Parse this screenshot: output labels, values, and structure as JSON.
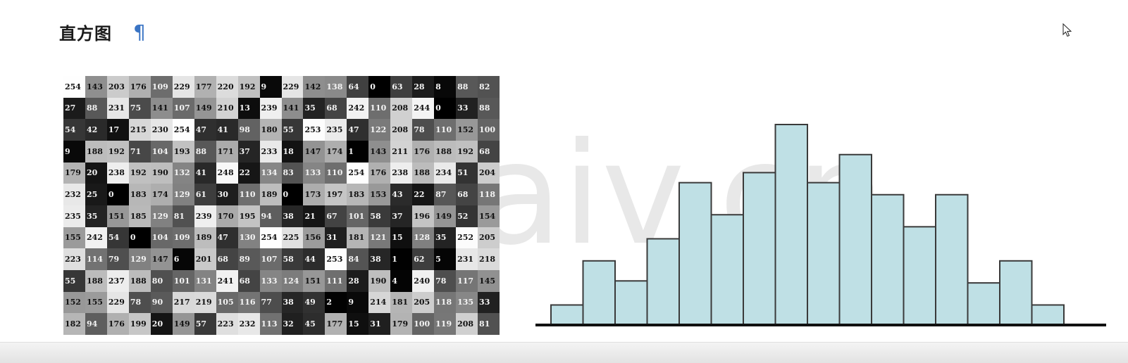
{
  "heading": {
    "title": "直方图",
    "para_mark": "¶"
  },
  "colors": {
    "para_mark": "#3a74c4",
    "bar_fill": "#bfe0e5",
    "bar_stroke": "#3a3a3a",
    "axis": "#111111",
    "watermark": "#e8e8e8"
  },
  "watermark": {
    "text": "eaaiv.cn"
  },
  "pixel_grid": {
    "rows": [
      [
        "254",
        "143",
        "203",
        "176",
        "109",
        "229",
        "177",
        "220",
        "192",
        "9",
        "229",
        "142",
        "138",
        "64",
        "0",
        "63",
        "28",
        "8",
        "88",
        "82"
      ],
      [
        "27",
        "88",
        "231",
        "75",
        "141",
        "107",
        "149",
        "210",
        "13",
        "239",
        "141",
        "35",
        "68",
        "242",
        "110",
        "208",
        "244",
        "0",
        "33",
        "88"
      ],
      [
        "54",
        "42",
        "17",
        "215",
        "230",
        "254",
        "47",
        "41",
        "98",
        "180",
        "55",
        "253",
        "235",
        "47",
        "122",
        "208",
        "78",
        "110",
        "152",
        "100"
      ],
      [
        "9",
        "188",
        "192",
        "71",
        "104",
        "193",
        "88",
        "171",
        "37",
        "233",
        "18",
        "147",
        "174",
        "1",
        "143",
        "211",
        "176",
        "188",
        "192",
        "68"
      ],
      [
        "179",
        "20",
        "238",
        "192",
        "190",
        "132",
        "41",
        "248",
        "22",
        "134",
        "83",
        "133",
        "110",
        "254",
        "176",
        "238",
        "188",
        "234",
        "51",
        "204"
      ],
      [
        "232",
        "25",
        "0",
        "183",
        "174",
        "129",
        "61",
        "30",
        "110",
        "189",
        "0",
        "173",
        "197",
        "183",
        "153",
        "43",
        "22",
        "87",
        "68",
        "118"
      ],
      [
        "235",
        "35",
        "151",
        "185",
        "129",
        "81",
        "239",
        "170",
        "195",
        "94",
        "38",
        "21",
        "67",
        "101",
        "58",
        "37",
        "196",
        "149",
        "52",
        "154"
      ],
      [
        "155",
        "242",
        "54",
        "0",
        "104",
        "109",
        "189",
        "47",
        "130",
        "254",
        "225",
        "156",
        "31",
        "181",
        "121",
        "15",
        "128",
        "35",
        "252",
        "205"
      ],
      [
        "223",
        "114",
        "79",
        "129",
        "147",
        "6",
        "201",
        "68",
        "89",
        "107",
        "58",
        "44",
        "253",
        "84",
        "38",
        "1",
        "62",
        "5",
        "231",
        "218"
      ],
      [
        "55",
        "188",
        "237",
        "188",
        "80",
        "101",
        "131",
        "241",
        "68",
        "133",
        "124",
        "151",
        "111",
        "28",
        "190",
        "4",
        "240",
        "78",
        "117",
        "145"
      ],
      [
        "152",
        "155",
        "229",
        "78",
        "90",
        "217",
        "219",
        "105",
        "116",
        "77",
        "38",
        "49",
        "2",
        "9",
        "214",
        "181",
        "205",
        "118",
        "135",
        "33"
      ],
      [
        "182",
        "94",
        "176",
        "199",
        "20",
        "149",
        "57",
        "223",
        "232",
        "113",
        "32",
        "45",
        "177",
        "15",
        "31",
        "179",
        "100",
        "119",
        "208",
        "81"
      ]
    ]
  },
  "chart_data": {
    "type": "bar",
    "categories": [
      "",
      "",
      "",
      "",
      "",
      "",
      "",
      "",
      "",
      "",
      "",
      "",
      "",
      "",
      "",
      "",
      ""
    ],
    "values": [
      10,
      32,
      22,
      43,
      71,
      55,
      76,
      100,
      71,
      85,
      65,
      49,
      65,
      21,
      32,
      10,
      0
    ],
    "title": "",
    "xlabel": "",
    "ylabel": "",
    "ylim": [
      0,
      100
    ],
    "grid": false,
    "legend": "none"
  },
  "bottom_bar": {}
}
